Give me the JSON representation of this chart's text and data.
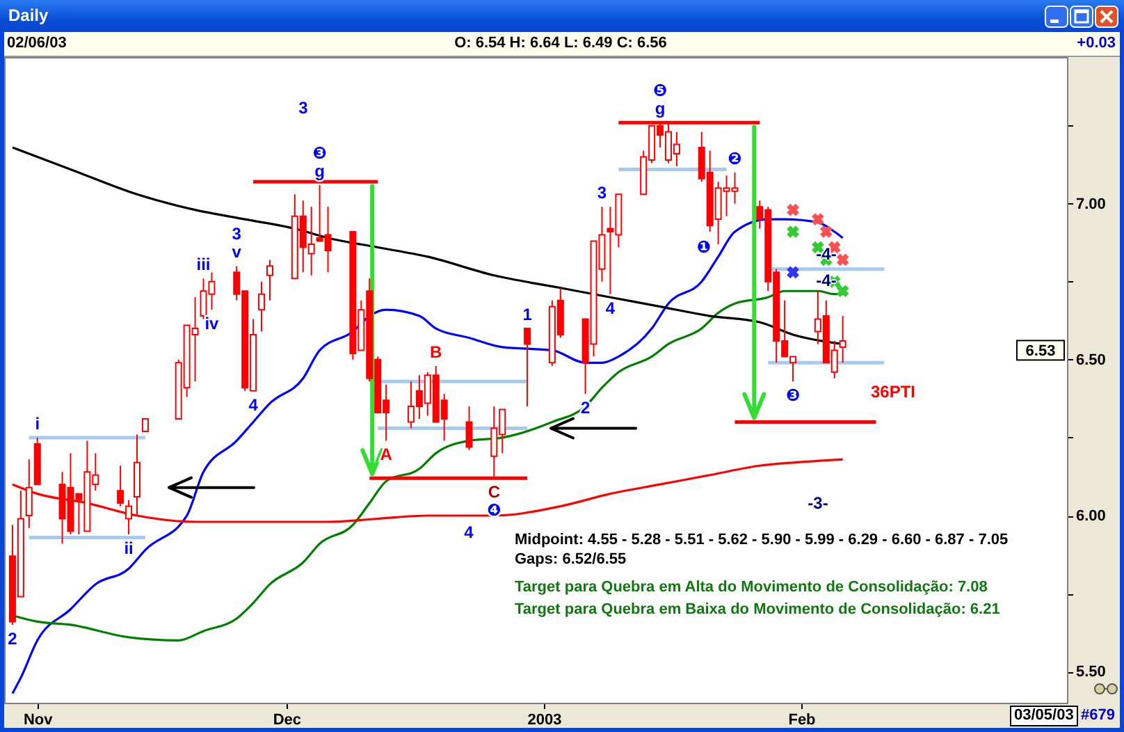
{
  "chart_data": {
    "type": "candlestick",
    "title": "Daily",
    "color": "#ff0000",
    "x": [
      "2002-10-29",
      "2002-10-30",
      "2002-10-31",
      "2002-11-01",
      "2002-11-04",
      "2002-11-05",
      "2002-11-06",
      "2002-11-07",
      "2002-11-08",
      "2002-11-11",
      "2002-11-12",
      "2002-11-13",
      "2002-11-14",
      "2002-11-18",
      "2002-11-19",
      "2002-11-20",
      "2002-11-21",
      "2002-11-22",
      "2002-11-25",
      "2002-11-26",
      "2002-11-27",
      "2002-11-28",
      "2002-11-29",
      "2002-12-02",
      "2002-12-03",
      "2002-12-04",
      "2002-12-05",
      "2002-12-06",
      "2002-12-09",
      "2002-12-10",
      "2002-12-11",
      "2002-12-12",
      "2002-12-13",
      "2002-12-16",
      "2002-12-17",
      "2002-12-18",
      "2002-12-19",
      "2002-12-20",
      "2002-12-23",
      "2002-12-26",
      "2002-12-27",
      "2002-12-30",
      "2003-01-02",
      "2003-01-03",
      "2003-01-06",
      "2003-01-07",
      "2003-01-08",
      "2003-01-09",
      "2003-01-10",
      "2003-01-13",
      "2003-01-14",
      "2003-01-15",
      "2003-01-16",
      "2003-01-17",
      "2003-01-20",
      "2003-01-21",
      "2003-01-22",
      "2003-01-23",
      "2003-01-24",
      "2003-01-27",
      "2003-01-28",
      "2003-01-29",
      "2003-01-30",
      "2003-01-31",
      "2003-02-03",
      "2003-02-04",
      "2003-02-05",
      "2003-02-06"
    ],
    "ohlc": [
      [
        5.87,
        5.97,
        5.65,
        5.66
      ],
      [
        5.74,
        6.08,
        5.74,
        5.99
      ],
      [
        6.0,
        6.18,
        5.96,
        6.09
      ],
      [
        6.23,
        6.25,
        6.1,
        6.1
      ],
      [
        6.1,
        6.14,
        5.91,
        5.99
      ],
      [
        6.09,
        6.2,
        5.94,
        5.95
      ],
      [
        6.07,
        6.07,
        5.94,
        6.05
      ],
      [
        5.95,
        6.24,
        5.95,
        6.14
      ],
      [
        6.1,
        6.2,
        6.08,
        6.13
      ],
      [
        6.08,
        6.16,
        6.03,
        6.04
      ],
      [
        5.99,
        6.05,
        5.94,
        6.03
      ],
      [
        6.06,
        6.26,
        6.0,
        6.17
      ],
      [
        6.27,
        6.31,
        6.27,
        6.31
      ],
      [
        6.31,
        6.5,
        6.31,
        6.49
      ],
      [
        6.41,
        6.61,
        6.38,
        6.61
      ],
      [
        6.58,
        6.7,
        6.43,
        6.6
      ],
      [
        6.64,
        6.76,
        6.63,
        6.72
      ],
      [
        6.71,
        6.78,
        6.66,
        6.75
      ],
      [
        6.78,
        6.8,
        6.69,
        6.71
      ],
      [
        6.72,
        6.72,
        6.4,
        6.41
      ],
      [
        6.4,
        6.63,
        6.4,
        6.58
      ],
      [
        6.66,
        6.75,
        6.59,
        6.71
      ],
      [
        6.77,
        6.82,
        6.69,
        6.8
      ],
      [
        6.76,
        7.03,
        6.76,
        6.96
      ],
      [
        6.96,
        7.01,
        6.78,
        6.86
      ],
      [
        6.84,
        6.99,
        6.77,
        6.87
      ],
      [
        6.89,
        7.06,
        6.88,
        6.88
      ],
      [
        6.9,
        6.99,
        6.78,
        6.85
      ],
      [
        6.91,
        6.91,
        6.5,
        6.52
      ],
      [
        6.53,
        6.69,
        6.53,
        6.66
      ],
      [
        6.72,
        6.76,
        6.43,
        6.44
      ],
      [
        6.5,
        6.51,
        6.33,
        6.33
      ],
      [
        6.37,
        6.42,
        6.24,
        6.33
      ],
      [
        6.3,
        6.43,
        6.28,
        6.35
      ],
      [
        6.4,
        6.45,
        6.31,
        6.35
      ],
      [
        6.36,
        6.46,
        6.32,
        6.45
      ],
      [
        6.45,
        6.48,
        6.3,
        6.3
      ],
      [
        6.37,
        6.39,
        6.24,
        6.31
      ],
      [
        6.3,
        6.35,
        6.21,
        6.22
      ],
      [
        6.19,
        6.35,
        6.12,
        6.28
      ],
      [
        6.26,
        6.34,
        6.2,
        6.34
      ],
      [
        6.6,
        6.6,
        6.35,
        6.55
      ],
      [
        6.49,
        6.69,
        6.48,
        6.67
      ],
      [
        6.69,
        6.73,
        6.57,
        6.58
      ],
      [
        6.63,
        6.63,
        6.39,
        6.49
      ],
      [
        6.55,
        6.88,
        6.51,
        6.88
      ],
      [
        6.79,
        6.99,
        6.75,
        6.9
      ],
      [
        6.92,
        6.99,
        6.71,
        6.91
      ],
      [
        6.9,
        7.03,
        6.86,
        7.03
      ],
      [
        7.03,
        7.17,
        7.03,
        7.15
      ],
      [
        7.14,
        7.25,
        7.13,
        7.25
      ],
      [
        7.25,
        7.26,
        7.18,
        7.22
      ],
      [
        7.14,
        7.26,
        7.13,
        7.23
      ],
      [
        7.16,
        7.23,
        7.12,
        7.19
      ],
      [
        7.18,
        7.23,
        7.07,
        7.08
      ],
      [
        7.1,
        7.17,
        6.91,
        6.93
      ],
      [
        6.95,
        7.07,
        6.87,
        7.05
      ],
      [
        7.04,
        7.09,
        6.96,
        7.05
      ],
      [
        7.04,
        7.1,
        7.0,
        7.05
      ],
      [
        6.99,
        7.01,
        6.92,
        6.95
      ],
      [
        6.98,
        6.99,
        6.72,
        6.75
      ],
      [
        6.78,
        6.79,
        6.49,
        6.56
      ],
      [
        6.56,
        6.69,
        6.51,
        6.51
      ],
      [
        6.49,
        6.51,
        6.43,
        6.51
      ],
      [
        6.59,
        6.72,
        6.55,
        6.63
      ],
      [
        6.64,
        6.69,
        6.49,
        6.49
      ],
      [
        6.46,
        6.56,
        6.44,
        6.53
      ],
      [
        6.54,
        6.64,
        6.49,
        6.56
      ]
    ],
    "series": [
      {
        "type": "line",
        "color": "#0000ff",
        "x": [
          "2002-10-29",
          "2002-10-30",
          "2002-11-01",
          "2002-11-05",
          "2002-11-08",
          "2002-11-12",
          "2002-11-14",
          "2002-11-19",
          "2002-11-21",
          "2002-11-25",
          "2002-11-27",
          "2002-11-29",
          "2002-12-03",
          "2002-12-05",
          "2002-12-09",
          "2002-12-11",
          "2002-12-13",
          "2002-12-17",
          "2002-12-19",
          "2002-12-23",
          "2002-12-27",
          "2003-01-02",
          "2003-01-06",
          "2003-01-08",
          "2003-01-10",
          "2003-01-14",
          "2003-01-16",
          "2003-01-20",
          "2003-01-22",
          "2003-01-24",
          "2003-01-28",
          "2003-01-30",
          "2003-02-03",
          "2003-02-05",
          "2003-02-06"
        ],
        "values": [
          5.43,
          5.48,
          5.6,
          5.7,
          5.78,
          5.83,
          5.89,
          6.0,
          6.14,
          6.24,
          6.3,
          6.36,
          6.44,
          6.53,
          6.59,
          6.64,
          6.66,
          6.64,
          6.6,
          6.57,
          6.54,
          6.53,
          6.49,
          6.49,
          6.51,
          6.6,
          6.68,
          6.75,
          6.83,
          6.91,
          6.95,
          6.95,
          6.94,
          6.91,
          6.89
        ]
      },
      {
        "type": "line",
        "color": "#008000",
        "x": [
          "2002-10-29",
          "2002-11-01",
          "2002-11-05",
          "2002-11-12",
          "2002-11-18",
          "2002-11-21",
          "2002-11-25",
          "2002-11-27",
          "2002-11-29",
          "2002-12-03",
          "2002-12-05",
          "2002-12-09",
          "2002-12-11",
          "2002-12-13",
          "2002-12-17",
          "2002-12-19",
          "2002-12-23",
          "2002-12-27",
          "2003-01-02",
          "2003-01-06",
          "2003-01-08",
          "2003-01-10",
          "2003-01-14",
          "2003-01-16",
          "2003-01-20",
          "2003-01-22",
          "2003-01-24",
          "2003-01-28",
          "2003-01-30",
          "2003-02-03",
          "2003-02-05",
          "2003-02-06"
        ],
        "values": [
          5.68,
          5.66,
          5.65,
          5.61,
          5.6,
          5.63,
          5.67,
          5.72,
          5.78,
          5.85,
          5.91,
          5.97,
          6.04,
          6.11,
          6.15,
          6.2,
          6.24,
          6.25,
          6.3,
          6.35,
          6.41,
          6.46,
          6.51,
          6.55,
          6.6,
          6.65,
          6.68,
          6.7,
          6.72,
          6.72,
          6.71,
          6.71
        ]
      },
      {
        "type": "line",
        "color": "#000000",
        "x": [
          "2002-10-29",
          "2002-11-05",
          "2002-11-13",
          "2002-11-20",
          "2002-11-26",
          "2002-12-02",
          "2002-12-06",
          "2002-12-12",
          "2002-12-18",
          "2002-12-26",
          "2003-01-03",
          "2003-01-09",
          "2003-01-15",
          "2003-01-21",
          "2003-01-27",
          "2003-01-31",
          "2003-02-06"
        ],
        "values": [
          7.18,
          7.11,
          7.03,
          6.98,
          6.95,
          6.92,
          6.89,
          6.86,
          6.83,
          6.77,
          6.73,
          6.7,
          6.67,
          6.64,
          6.62,
          6.58,
          6.55
        ]
      },
      {
        "type": "line",
        "color": "#ff0000",
        "x": [
          "2002-10-29",
          "2002-11-01",
          "2002-11-07",
          "2002-11-13",
          "2002-11-20",
          "2002-11-26",
          "2002-12-02",
          "2002-12-06",
          "2002-12-12",
          "2002-12-18",
          "2002-12-26",
          "2003-01-03",
          "2003-01-09",
          "2003-01-15",
          "2003-01-21",
          "2003-01-27",
          "2003-01-31",
          "2003-02-06"
        ],
        "values": [
          6.1,
          6.07,
          6.04,
          6.0,
          5.98,
          5.98,
          5.98,
          5.98,
          5.99,
          6.0,
          6.0,
          6.03,
          6.07,
          6.1,
          6.13,
          6.16,
          6.17,
          6.18
        ]
      },
      {
        "type": "line",
        "color": "#a6caf0",
        "x": [
          "2002-10-31",
          "2002-11-14"
        ],
        "values": [
          6.25,
          6.25
        ]
      },
      {
        "type": "line",
        "color": "#a6caf0",
        "x": [
          "2002-10-31",
          "2002-11-14"
        ],
        "values": [
          5.93,
          5.93
        ]
      },
      {
        "type": "line",
        "color": "#a6caf0",
        "x": [
          "2002-12-12",
          "2002-12-30"
        ],
        "values": [
          6.43,
          6.43
        ]
      },
      {
        "type": "line",
        "color": "#a6caf0",
        "x": [
          "2002-12-12",
          "2002-12-30"
        ],
        "values": [
          6.28,
          6.28
        ]
      },
      {
        "type": "line",
        "color": "#a6caf0",
        "x": [
          "2003-01-10",
          "2003-01-23"
        ],
        "values": [
          7.11,
          7.11
        ]
      },
      {
        "type": "line",
        "color": "#a6caf0",
        "x": [
          "2003-01-28",
          "2003-02-11"
        ],
        "values": [
          6.79,
          6.79
        ]
      },
      {
        "type": "line",
        "color": "#a6caf0",
        "x": [
          "2003-01-28",
          "2003-02-11"
        ],
        "values": [
          6.49,
          6.49
        ]
      },
      {
        "type": "line",
        "color": "#ff0000",
        "x": [
          "2002-11-27",
          "2002-12-12"
        ],
        "values": [
          7.07,
          7.07
        ]
      },
      {
        "type": "line",
        "color": "#ff0000",
        "x": [
          "2002-12-11",
          "2002-12-30"
        ],
        "values": [
          6.12,
          6.12
        ]
      },
      {
        "type": "line",
        "color": "#ff0000",
        "x": [
          "2003-01-10",
          "2003-01-27"
        ],
        "values": [
          7.26,
          7.26
        ]
      },
      {
        "type": "line",
        "color": "#ff0000",
        "x": [
          "2003-01-24",
          "2003-02-10"
        ],
        "values": [
          6.3,
          6.3
        ]
      },
      {
        "type": "scatter",
        "marker": "cross",
        "color": "#ff5050",
        "x": [
          "2003-01-31",
          "2003-02-03",
          "2003-02-04",
          "2003-02-05",
          "2003-02-06"
        ],
        "values": [
          6.98,
          6.95,
          6.91,
          6.86,
          6.82
        ]
      },
      {
        "type": "scatter",
        "marker": "cross",
        "color": "#33cc33",
        "x": [
          "2003-01-31",
          "2003-02-03",
          "2003-02-04",
          "2003-02-05",
          "2003-02-06"
        ],
        "values": [
          6.91,
          6.86,
          6.82,
          6.75,
          6.72
        ]
      },
      {
        "type": "scatter",
        "marker": "cross",
        "color": "#3333ff",
        "x": [
          "2003-01-31"
        ],
        "values": [
          6.78
        ]
      }
    ],
    "xlim": [
      "2002-10-28",
      "2003-03-05"
    ],
    "xticks": [
      {
        "value": "2002-11-01",
        "label": "Nov"
      },
      {
        "value": "2002-12-01",
        "label": "Dec"
      },
      {
        "value": "2003-01-01",
        "label": "2003"
      },
      {
        "value": "2003-02-01",
        "label": "Feb"
      }
    ],
    "ylim": [
      5.4,
      7.47
    ],
    "yticks": [
      {
        "value": 5.5,
        "label": "5.50"
      },
      {
        "value": 5.75,
        "label": null
      },
      {
        "value": 6,
        "label": "6.00"
      },
      {
        "value": 6.25,
        "label": null
      },
      {
        "value": 6.5,
        "label": "6.50"
      },
      {
        "value": 6.75,
        "label": null
      },
      {
        "value": 7,
        "label": "7.00"
      },
      {
        "value": 7.25,
        "label": null
      }
    ],
    "annotations": [
      "02/06/03",
      "O: 6.54 H: 6.64 L: 6.49 C: 6.56",
      "+0.03",
      "Midpoint: 4.55 - 5.28 - 5.51 - 5.62 - 5.90 - 5.99 - 6.29 - 6.60 - 6.87 - 7.05",
      "Gaps: 6.52/6.55",
      "Target para Quebra em Alta do Movimento de Consolidação: 7.08",
      "Target para Quebra em Baixa do Movimento de Consolidação: 6.21",
      "03/05/03",
      "#679",
      "3",
      "4",
      "-4-",
      "-4-",
      "-3-",
      "36PTI",
      "❶",
      {
        "text": "2",
        "x": "2002-10-29",
        "y": 5.65
      },
      {
        "text": "i",
        "x": "2002-11-01",
        "y": 6.25
      },
      {
        "text": "ii",
        "x": "2002-11-12",
        "y": 5.94
      },
      {
        "text": "iii",
        "x": "2002-11-21",
        "y": 6.76
      },
      {
        "text": "iv",
        "x": "2002-11-22",
        "y": 6.66
      },
      {
        "text": "v",
        "x": "2002-11-25",
        "y": 6.8
      },
      {
        "text": "3",
        "x": "2002-11-25",
        "y": 6.8
      },
      {
        "text": "4",
        "x": "2002-11-27",
        "y": 6.4
      },
      {
        "text": "g",
        "x": "2002-12-05",
        "y": 7.06
      },
      {
        "text": "❸",
        "x": "2002-12-05",
        "y": 7.06
      },
      {
        "text": "A",
        "x": "2002-12-13",
        "y": 6.24
      },
      {
        "text": "B",
        "x": "2002-12-19",
        "y": 6.48
      },
      {
        "text": "C",
        "x": "2002-12-26",
        "y": 6.12
      },
      {
        "text": "❹",
        "x": "2002-12-26",
        "y": 6.12
      },
      {
        "text": "1",
        "x": "2002-12-30",
        "y": 6.6
      },
      {
        "text": "2",
        "x": "2003-01-06",
        "y": 6.39
      },
      {
        "text": "3",
        "x": "2003-01-08",
        "y": 6.99
      },
      {
        "text": "4",
        "x": "2003-01-09",
        "y": 6.71
      },
      {
        "text": "g",
        "x": "2003-01-15",
        "y": 7.26
      },
      {
        "text": "❺",
        "x": "2003-01-15",
        "y": 7.26
      },
      {
        "text": "❷",
        "x": "2003-01-24",
        "y": 7.1
      },
      {
        "text": "❸",
        "x": "2003-01-31",
        "y": 6.43
      },
      {
        "text": "6.53",
        "y": 6.53
      }
    ]
  }
}
